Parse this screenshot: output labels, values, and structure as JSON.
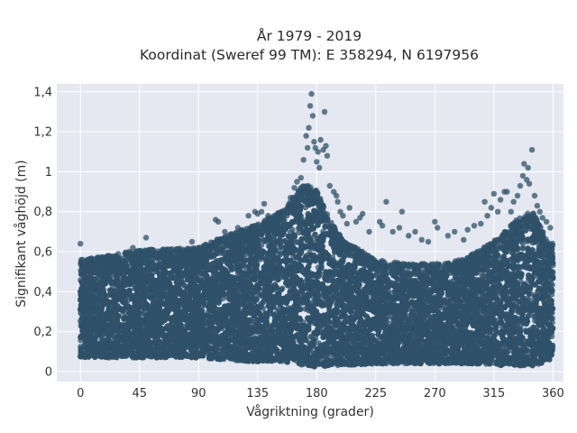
{
  "chart_data": {
    "type": "scatter",
    "title": "År 1979 - 2019",
    "subtitle": "Koordinat (Sweref 99 TM): E 358294, N 6197956",
    "xlabel": "Vågriktning (grader)",
    "ylabel": "Signifikant våghöjd (m)",
    "xlim": [
      -18,
      368
    ],
    "ylim": [
      -0.05,
      1.44
    ],
    "xticks": [
      0,
      45,
      90,
      135,
      180,
      225,
      270,
      315,
      360
    ],
    "xtick_labels": [
      "0",
      "45",
      "90",
      "135",
      "180",
      "225",
      "270",
      "315",
      "360"
    ],
    "yticks": [
      0,
      0.2,
      0.4,
      0.6,
      0.8,
      1.0,
      1.2,
      1.4
    ],
    "ytick_labels": [
      "0",
      "0,2",
      "0,4",
      "0,6",
      "0,8",
      "1",
      "1,2",
      "1,4"
    ],
    "grid": true,
    "background": "#e5e8f0",
    "marker_color": "#2f5169",
    "envelope": {
      "x": [
        0,
        20,
        45,
        90,
        110,
        135,
        155,
        170,
        180,
        190,
        200,
        225,
        250,
        270,
        290,
        305,
        320,
        335,
        345,
        355,
        360
      ],
      "y_max": [
        0.5,
        0.52,
        0.55,
        0.56,
        0.62,
        0.68,
        0.75,
        0.88,
        0.85,
        0.7,
        0.6,
        0.5,
        0.48,
        0.48,
        0.5,
        0.55,
        0.62,
        0.72,
        0.74,
        0.6,
        0.58
      ],
      "y_min": [
        0.07,
        0.07,
        0.07,
        0.07,
        0.06,
        0.05,
        0.05,
        0.03,
        0.02,
        0.03,
        0.03,
        0.04,
        0.04,
        0.04,
        0.04,
        0.04,
        0.03,
        0.03,
        0.03,
        0.05,
        0.07
      ]
    },
    "outliers": [
      [
        0,
        0.64
      ],
      [
        22,
        0.55
      ],
      [
        37,
        0.6
      ],
      [
        40,
        0.62
      ],
      [
        50,
        0.67
      ],
      [
        62,
        0.58
      ],
      [
        75,
        0.6
      ],
      [
        85,
        0.65
      ],
      [
        95,
        0.58
      ],
      [
        100,
        0.62
      ],
      [
        103,
        0.76
      ],
      [
        105,
        0.75
      ],
      [
        110,
        0.7
      ],
      [
        113,
        0.65
      ],
      [
        120,
        0.72
      ],
      [
        128,
        0.78
      ],
      [
        133,
        0.8
      ],
      [
        135,
        0.79
      ],
      [
        138,
        0.8
      ],
      [
        140,
        0.84
      ],
      [
        145,
        0.75
      ],
      [
        150,
        0.78
      ],
      [
        160,
        0.87
      ],
      [
        163,
        0.92
      ],
      [
        165,
        0.95
      ],
      [
        168,
        0.97
      ],
      [
        170,
        1.06
      ],
      [
        172,
        1.18
      ],
      [
        173,
        1.12
      ],
      [
        174,
        1.22
      ],
      [
        175,
        1.33
      ],
      [
        176,
        1.39
      ],
      [
        177,
        1.28
      ],
      [
        178,
        1.15
      ],
      [
        179,
        1.12
      ],
      [
        180,
        1.05
      ],
      [
        181,
        1.1
      ],
      [
        182,
        1.02
      ],
      [
        183,
        1.16
      ],
      [
        185,
        1.11
      ],
      [
        186,
        1.3
      ],
      [
        187,
        1.13
      ],
      [
        188,
        1.08
      ],
      [
        190,
        0.93
      ],
      [
        193,
        0.9
      ],
      [
        196,
        0.85
      ],
      [
        198,
        0.8
      ],
      [
        200,
        0.78
      ],
      [
        205,
        0.82
      ],
      [
        210,
        0.75
      ],
      [
        215,
        0.79
      ],
      [
        220,
        0.7
      ],
      [
        230,
        0.73
      ],
      [
        233,
        0.85
      ],
      [
        238,
        0.7
      ],
      [
        245,
        0.8
      ],
      [
        250,
        0.68
      ],
      [
        255,
        0.7
      ],
      [
        265,
        0.65
      ],
      [
        270,
        0.75
      ],
      [
        272,
        0.72
      ],
      [
        285,
        0.7
      ],
      [
        292,
        0.66
      ],
      [
        300,
        0.73
      ],
      [
        308,
        0.85
      ],
      [
        310,
        0.78
      ],
      [
        313,
        0.82
      ],
      [
        315,
        0.89
      ],
      [
        320,
        0.86
      ],
      [
        323,
        0.9
      ],
      [
        325,
        0.9
      ],
      [
        330,
        0.85
      ],
      [
        333,
        0.88
      ],
      [
        335,
        0.93
      ],
      [
        337,
        0.98
      ],
      [
        338,
        1.04
      ],
      [
        340,
        0.96
      ],
      [
        341,
        1.02
      ],
      [
        342,
        0.94
      ],
      [
        344,
        1.11
      ],
      [
        346,
        0.88
      ],
      [
        348,
        0.83
      ],
      [
        350,
        0.8
      ],
      [
        352,
        0.77
      ],
      [
        355,
        0.75
      ],
      [
        358,
        0.72
      ],
      [
        5,
        0.52
      ],
      [
        15,
        0.53
      ],
      [
        28,
        0.55
      ],
      [
        55,
        0.56
      ],
      [
        68,
        0.58
      ],
      [
        80,
        0.6
      ],
      [
        92,
        0.6
      ],
      [
        118,
        0.66
      ],
      [
        125,
        0.7
      ],
      [
        143,
        0.78
      ],
      [
        148,
        0.77
      ],
      [
        153,
        0.8
      ],
      [
        158,
        0.82
      ],
      [
        195,
        0.88
      ],
      [
        203,
        0.74
      ],
      [
        213,
        0.77
      ],
      [
        228,
        0.75
      ],
      [
        243,
        0.72
      ],
      [
        260,
        0.66
      ],
      [
        280,
        0.68
      ],
      [
        295,
        0.71
      ],
      [
        305,
        0.74
      ],
      [
        318,
        0.8
      ],
      [
        328,
        0.8
      ]
    ]
  }
}
